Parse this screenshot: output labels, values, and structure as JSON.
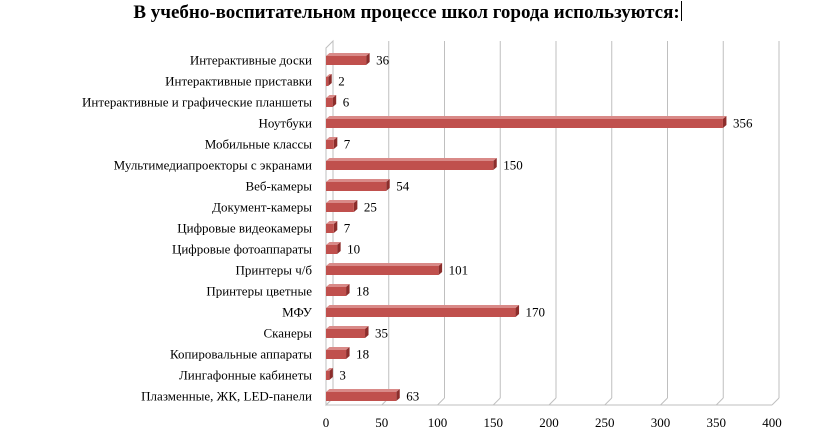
{
  "chart_data": {
    "type": "bar",
    "orientation": "horizontal",
    "style": "3d",
    "title": "В учебно-воспитательном процессе школ города используются:",
    "categories": [
      "Интерактивные доски",
      "Интерактивные приставки",
      "Интерактивные и графические  планшеты",
      "Ноутбуки",
      "Мобильные классы",
      "Мультимедиапроекторы с экранами",
      "Веб-камеры",
      "Документ-камеры",
      "Цифровые видеокамеры",
      "Цифровые фотоаппараты",
      "Принтеры ч/б",
      "Принтеры цветные",
      "МФУ",
      "Сканеры",
      "Копировальные аппараты",
      "Лингафонные кабинеты",
      "Плазменные, ЖК, LED-панели"
    ],
    "values": [
      36,
      2,
      6,
      356,
      7,
      150,
      54,
      25,
      7,
      10,
      101,
      18,
      170,
      35,
      18,
      3,
      63
    ],
    "xlim": [
      0,
      400
    ],
    "xticks": [
      0,
      50,
      100,
      150,
      200,
      250,
      300,
      350,
      400
    ],
    "grid": true,
    "legend": false,
    "colors": {
      "bar_front": "#c0504d",
      "bar_side": "#8c2d2b",
      "bar_top": "#d98a88",
      "grid": "#bfbfbf",
      "wall": "#ffffff"
    }
  }
}
